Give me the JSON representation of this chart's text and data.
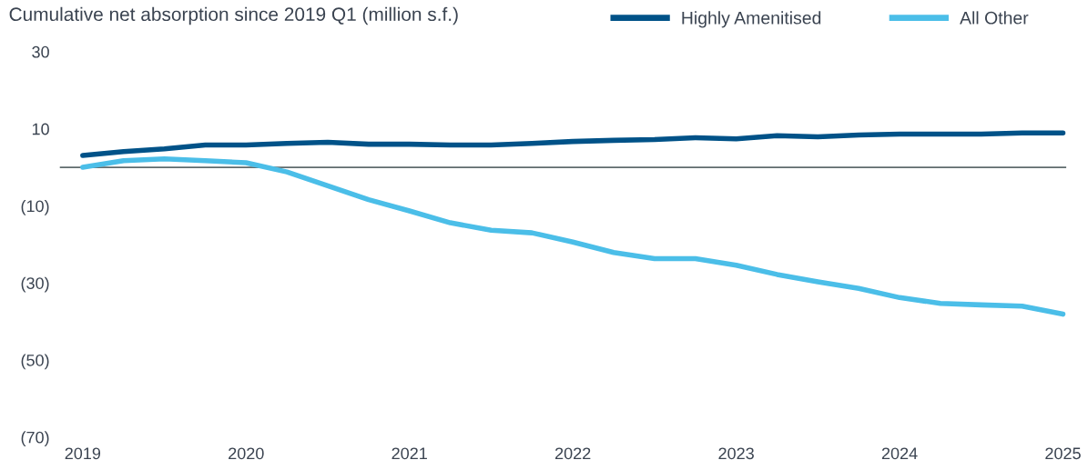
{
  "chart_data": {
    "type": "line",
    "subtitle": "Cumulative net absorption since 2019 Q1 (million s.f.)",
    "x": [
      2019,
      2019.25,
      2019.5,
      2019.75,
      2020,
      2020.25,
      2020.5,
      2020.75,
      2021,
      2021.25,
      2021.5,
      2021.75,
      2022,
      2022.25,
      2022.5,
      2022.75,
      2023,
      2023.25,
      2023.5,
      2023.75,
      2024,
      2024.25,
      2024.5,
      2024.75,
      2025
    ],
    "series": [
      {
        "name": "Highly Amenitised",
        "color": "#005288",
        "values": [
          3.1,
          4.1,
          4.8,
          5.8,
          5.8,
          6.2,
          6.5,
          6.0,
          6.0,
          5.8,
          5.8,
          6.2,
          6.7,
          7.0,
          7.2,
          7.7,
          7.4,
          8.2,
          7.9,
          8.4,
          8.6,
          8.6,
          8.6,
          8.9,
          8.9
        ]
      },
      {
        "name": "All Other",
        "color": "#4bbee8",
        "values": [
          0,
          1.7,
          2.2,
          1.7,
          1.2,
          -1.2,
          -4.8,
          -8.4,
          -11.3,
          -14.4,
          -16.3,
          -17.0,
          -19.4,
          -22.1,
          -23.7,
          -23.7,
          -25.4,
          -27.8,
          -29.7,
          -31.4,
          -33.8,
          -35.3,
          -35.7,
          -36.0,
          -38.1
        ]
      }
    ],
    "xlim": [
      2018.86,
      2025.02
    ],
    "xticks": [
      2019,
      2020,
      2021,
      2022,
      2023,
      2024,
      2025
    ],
    "ylim": [
      -70,
      30
    ],
    "yticks": [
      30,
      10,
      {
        "value": -10,
        "label": "(10)"
      },
      {
        "value": -30,
        "label": "(30)"
      },
      {
        "value": -50,
        "label": "(50)"
      },
      {
        "value": -70,
        "label": "(70)"
      }
    ],
    "ref_lines": [
      {
        "axis": "y",
        "value": 0,
        "color": "#5f6b6d"
      }
    ],
    "legend": "top right",
    "grid": false,
    "marker": "none",
    "line_style": "solid"
  }
}
